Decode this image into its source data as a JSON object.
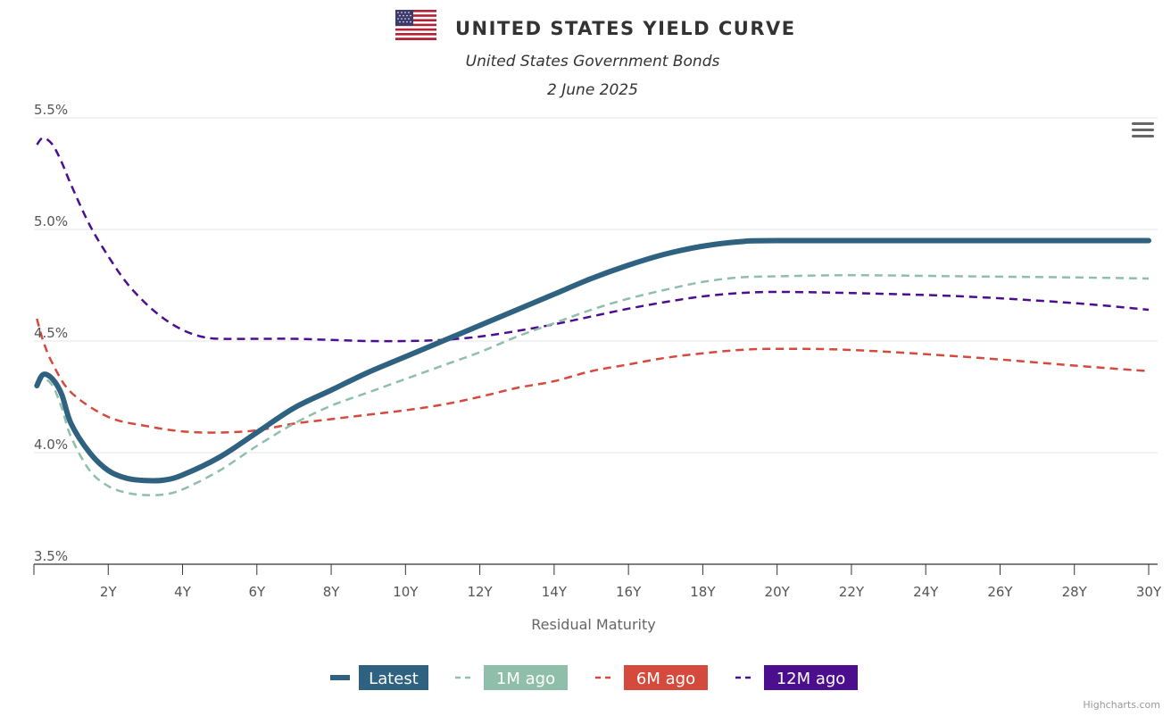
{
  "header": {
    "flag_icon": "us-flag-icon",
    "title": "UNITED STATES YIELD CURVE",
    "subtitle": "United States Government Bonds",
    "date": "2 June 2025"
  },
  "menu_icon": "hamburger-menu-icon",
  "credits": "Highcharts.com",
  "chart_data": {
    "type": "line",
    "title": "UNITED STATES YIELD CURVE",
    "subtitle": "United States Government Bonds",
    "xlabel": "Residual Maturity",
    "ylabel": "",
    "xlim": [
      0,
      30
    ],
    "ylim": [
      3.5,
      5.5
    ],
    "x_ticks": [
      2,
      4,
      6,
      8,
      10,
      12,
      14,
      16,
      18,
      20,
      22,
      24,
      26,
      28,
      30
    ],
    "x_tick_labels": [
      "2Y",
      "4Y",
      "6Y",
      "8Y",
      "10Y",
      "12Y",
      "14Y",
      "16Y",
      "18Y",
      "20Y",
      "22Y",
      "24Y",
      "26Y",
      "28Y",
      "30Y"
    ],
    "y_ticks": [
      3.5,
      4.0,
      4.5,
      5.0,
      5.5
    ],
    "y_tick_labels": [
      "3.5%",
      "4.0%",
      "4.5%",
      "5.0%",
      "5.5%"
    ],
    "grid": true,
    "legend_position": "bottom-center",
    "series": [
      {
        "name": "Latest",
        "color": "#2f6180",
        "dash": "solid",
        "x": [
          0.08,
          0.25,
          0.5,
          0.75,
          1,
          1.5,
          2,
          2.5,
          3,
          3.5,
          4,
          5,
          6,
          7,
          8,
          9,
          10,
          11,
          12,
          13,
          14,
          15,
          16,
          17,
          18,
          19,
          20,
          25,
          30
        ],
        "values": [
          4.3,
          4.35,
          4.33,
          4.26,
          4.13,
          4.0,
          3.92,
          3.885,
          3.875,
          3.877,
          3.9,
          3.98,
          4.09,
          4.2,
          4.28,
          4.36,
          4.43,
          4.5,
          4.57,
          4.64,
          4.71,
          4.78,
          4.84,
          4.89,
          4.925,
          4.945,
          4.95,
          4.95,
          4.95
        ]
      },
      {
        "name": "1M ago",
        "color": "#8fbfaa",
        "dash": "dash",
        "x": [
          0.08,
          0.25,
          0.5,
          0.75,
          1,
          1.5,
          2,
          2.5,
          3,
          3.5,
          4,
          5,
          6,
          7,
          8,
          9,
          10,
          11,
          12,
          13,
          14,
          15,
          16,
          17,
          18,
          19,
          20,
          22,
          25,
          28,
          30
        ],
        "values": [
          4.3,
          4.33,
          4.3,
          4.2,
          4.07,
          3.92,
          3.85,
          3.82,
          3.81,
          3.813,
          3.835,
          3.92,
          4.03,
          4.13,
          4.21,
          4.27,
          4.33,
          4.39,
          4.45,
          4.52,
          4.58,
          4.64,
          4.69,
          4.73,
          4.765,
          4.785,
          4.79,
          4.795,
          4.79,
          4.785,
          4.78
        ]
      },
      {
        "name": "6M ago",
        "color": "#d44a3c",
        "dash": "dash",
        "x": [
          0.08,
          0.25,
          0.5,
          1,
          2,
          3,
          4,
          5,
          6,
          7,
          8,
          9,
          10,
          11,
          12,
          13,
          14,
          15,
          16,
          17,
          18,
          19,
          20,
          22,
          25,
          28,
          30
        ],
        "values": [
          4.6,
          4.5,
          4.4,
          4.27,
          4.16,
          4.12,
          4.095,
          4.09,
          4.1,
          4.13,
          4.15,
          4.17,
          4.19,
          4.215,
          4.25,
          4.29,
          4.32,
          4.365,
          4.395,
          4.425,
          4.445,
          4.46,
          4.465,
          4.46,
          4.43,
          4.39,
          4.365
        ]
      },
      {
        "name": "12M ago",
        "color": "#4b0e8f",
        "dash": "dash",
        "x": [
          0.08,
          0.25,
          0.5,
          0.75,
          1,
          1.5,
          2,
          2.5,
          3,
          3.5,
          4,
          4.5,
          5,
          6,
          7,
          8,
          9,
          10,
          11,
          12,
          13,
          14,
          15,
          16,
          17,
          18,
          19,
          20,
          22,
          25,
          28,
          30
        ],
        "values": [
          5.38,
          5.41,
          5.38,
          5.3,
          5.2,
          5.02,
          4.88,
          4.76,
          4.67,
          4.6,
          4.55,
          4.52,
          4.51,
          4.51,
          4.51,
          4.505,
          4.5,
          4.5,
          4.505,
          4.52,
          4.545,
          4.575,
          4.61,
          4.645,
          4.675,
          4.7,
          4.715,
          4.72,
          4.715,
          4.7,
          4.67,
          4.64
        ]
      }
    ]
  }
}
